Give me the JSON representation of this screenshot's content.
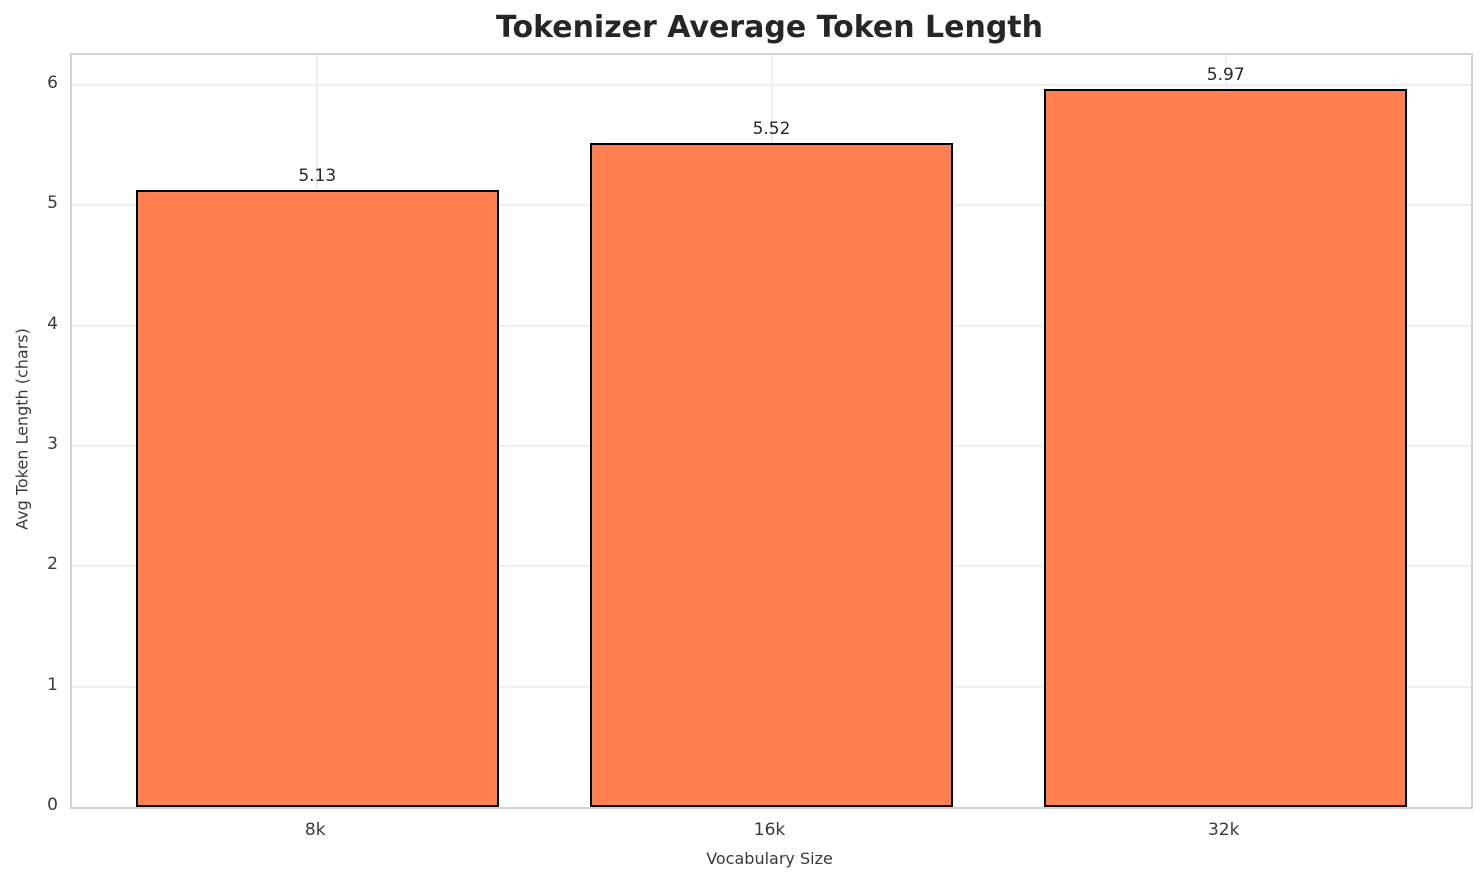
{
  "chart_data": {
    "type": "bar",
    "title": "Tokenizer Average Token Length",
    "xlabel": "Vocabulary Size",
    "ylabel": "Avg Token Length (chars)",
    "categories": [
      "8k",
      "16k",
      "32k"
    ],
    "values": [
      5.13,
      5.52,
      5.97
    ],
    "value_labels": [
      "5.13",
      "5.52",
      "5.97"
    ],
    "yticks": [
      0,
      1,
      2,
      3,
      4,
      5,
      6
    ],
    "ylim": [
      0,
      6.25
    ],
    "xlim": [
      -0.54,
      2.54
    ],
    "bar_width": 0.8,
    "grid": "on",
    "legend": "none",
    "colors": {
      "bar_fill": "#FF7F50",
      "bar_edge": "#000000",
      "grid": "#efefef",
      "spine": "#d2d2d2",
      "title_text": "#262626",
      "tick_text": "#3a3a3a"
    }
  }
}
